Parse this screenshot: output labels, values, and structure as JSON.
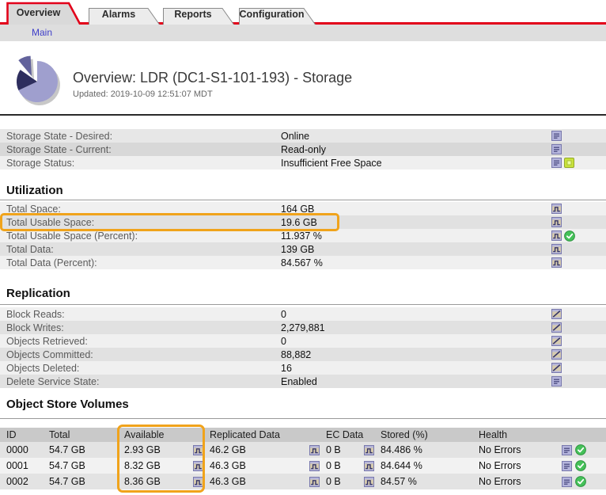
{
  "tabs": {
    "items": [
      {
        "label": "Overview",
        "active": true
      },
      {
        "label": "Alarms",
        "active": false
      },
      {
        "label": "Reports",
        "active": false
      },
      {
        "label": "Configuration",
        "active": false
      }
    ]
  },
  "nav": {
    "main": "Main"
  },
  "header": {
    "title": "Overview: LDR (DC1-S1-101-193) - Storage",
    "updated": "Updated: 2019-10-09 12:51:07 MDT"
  },
  "state_table": {
    "rows": [
      {
        "label": "Storage State - Desired:",
        "value": "Online",
        "icons": [
          "state-text-icon"
        ]
      },
      {
        "label": "Storage State - Current:",
        "value": "Read-only",
        "icons": [
          "state-text-icon"
        ]
      },
      {
        "label": "Storage Status:",
        "value": "Insufficient Free Space",
        "icons": [
          "state-text-icon",
          "notice-icon"
        ]
      }
    ]
  },
  "utilization": {
    "title": "Utilization",
    "rows": [
      {
        "label": "Total Space:",
        "value": "164 GB",
        "icons": [
          "chart-icon"
        ]
      },
      {
        "label": "Total Usable Space:",
        "value": "19.6 GB",
        "icons": [
          "chart-icon"
        ],
        "highlighted": true
      },
      {
        "label": "Total Usable Space (Percent):",
        "value": "11.937 %",
        "icons": [
          "chart-icon",
          "success-icon"
        ]
      },
      {
        "label": "Total Data:",
        "value": "139 GB",
        "icons": [
          "chart-icon"
        ]
      },
      {
        "label": "Total Data (Percent):",
        "value": "84.567 %",
        "icons": [
          "chart-icon"
        ]
      }
    ]
  },
  "replication": {
    "title": "Replication",
    "rows": [
      {
        "label": "Block Reads:",
        "value": "0",
        "icons": [
          "trend-chart-icon"
        ]
      },
      {
        "label": "Block Writes:",
        "value": "2,279,881",
        "icons": [
          "trend-chart-icon"
        ]
      },
      {
        "label": "Objects Retrieved:",
        "value": "0",
        "icons": [
          "trend-chart-icon"
        ]
      },
      {
        "label": "Objects Committed:",
        "value": "88,882",
        "icons": [
          "trend-chart-icon"
        ]
      },
      {
        "label": "Objects Deleted:",
        "value": "16",
        "icons": [
          "trend-chart-icon"
        ]
      },
      {
        "label": "Delete Service State:",
        "value": "Enabled",
        "icons": [
          "state-text-icon"
        ]
      }
    ]
  },
  "volumes": {
    "title": "Object Store Volumes",
    "columns": [
      "ID",
      "Total",
      "Available",
      "Replicated Data",
      "EC Data",
      "Stored (%)",
      "Health"
    ],
    "rows": [
      {
        "id": "0000",
        "total": "54.7 GB",
        "available": "2.93 GB",
        "replicated": "46.2 GB",
        "ec": "0 B",
        "stored": "84.486 %",
        "health": "No Errors",
        "health_icons": [
          "state-text-icon",
          "success-icon"
        ]
      },
      {
        "id": "0001",
        "total": "54.7 GB",
        "available": "8.32 GB",
        "replicated": "46.3 GB",
        "ec": "0 B",
        "stored": "84.644 %",
        "health": "No Errors",
        "health_icons": [
          "state-text-icon",
          "success-icon"
        ]
      },
      {
        "id": "0002",
        "total": "54.7 GB",
        "available": "8.36 GB",
        "replicated": "46.3 GB",
        "ec": "0 B",
        "stored": "84.57 %",
        "health": "No Errors",
        "health_icons": [
          "state-text-icon",
          "success-icon"
        ]
      }
    ]
  },
  "colors": {
    "accent_red": "#e2001a",
    "highlight_orange": "#f0a31b",
    "link_blue": "#3e3ec9",
    "ok_green": "#45c159",
    "notice_yellow": "#c8e23c"
  }
}
